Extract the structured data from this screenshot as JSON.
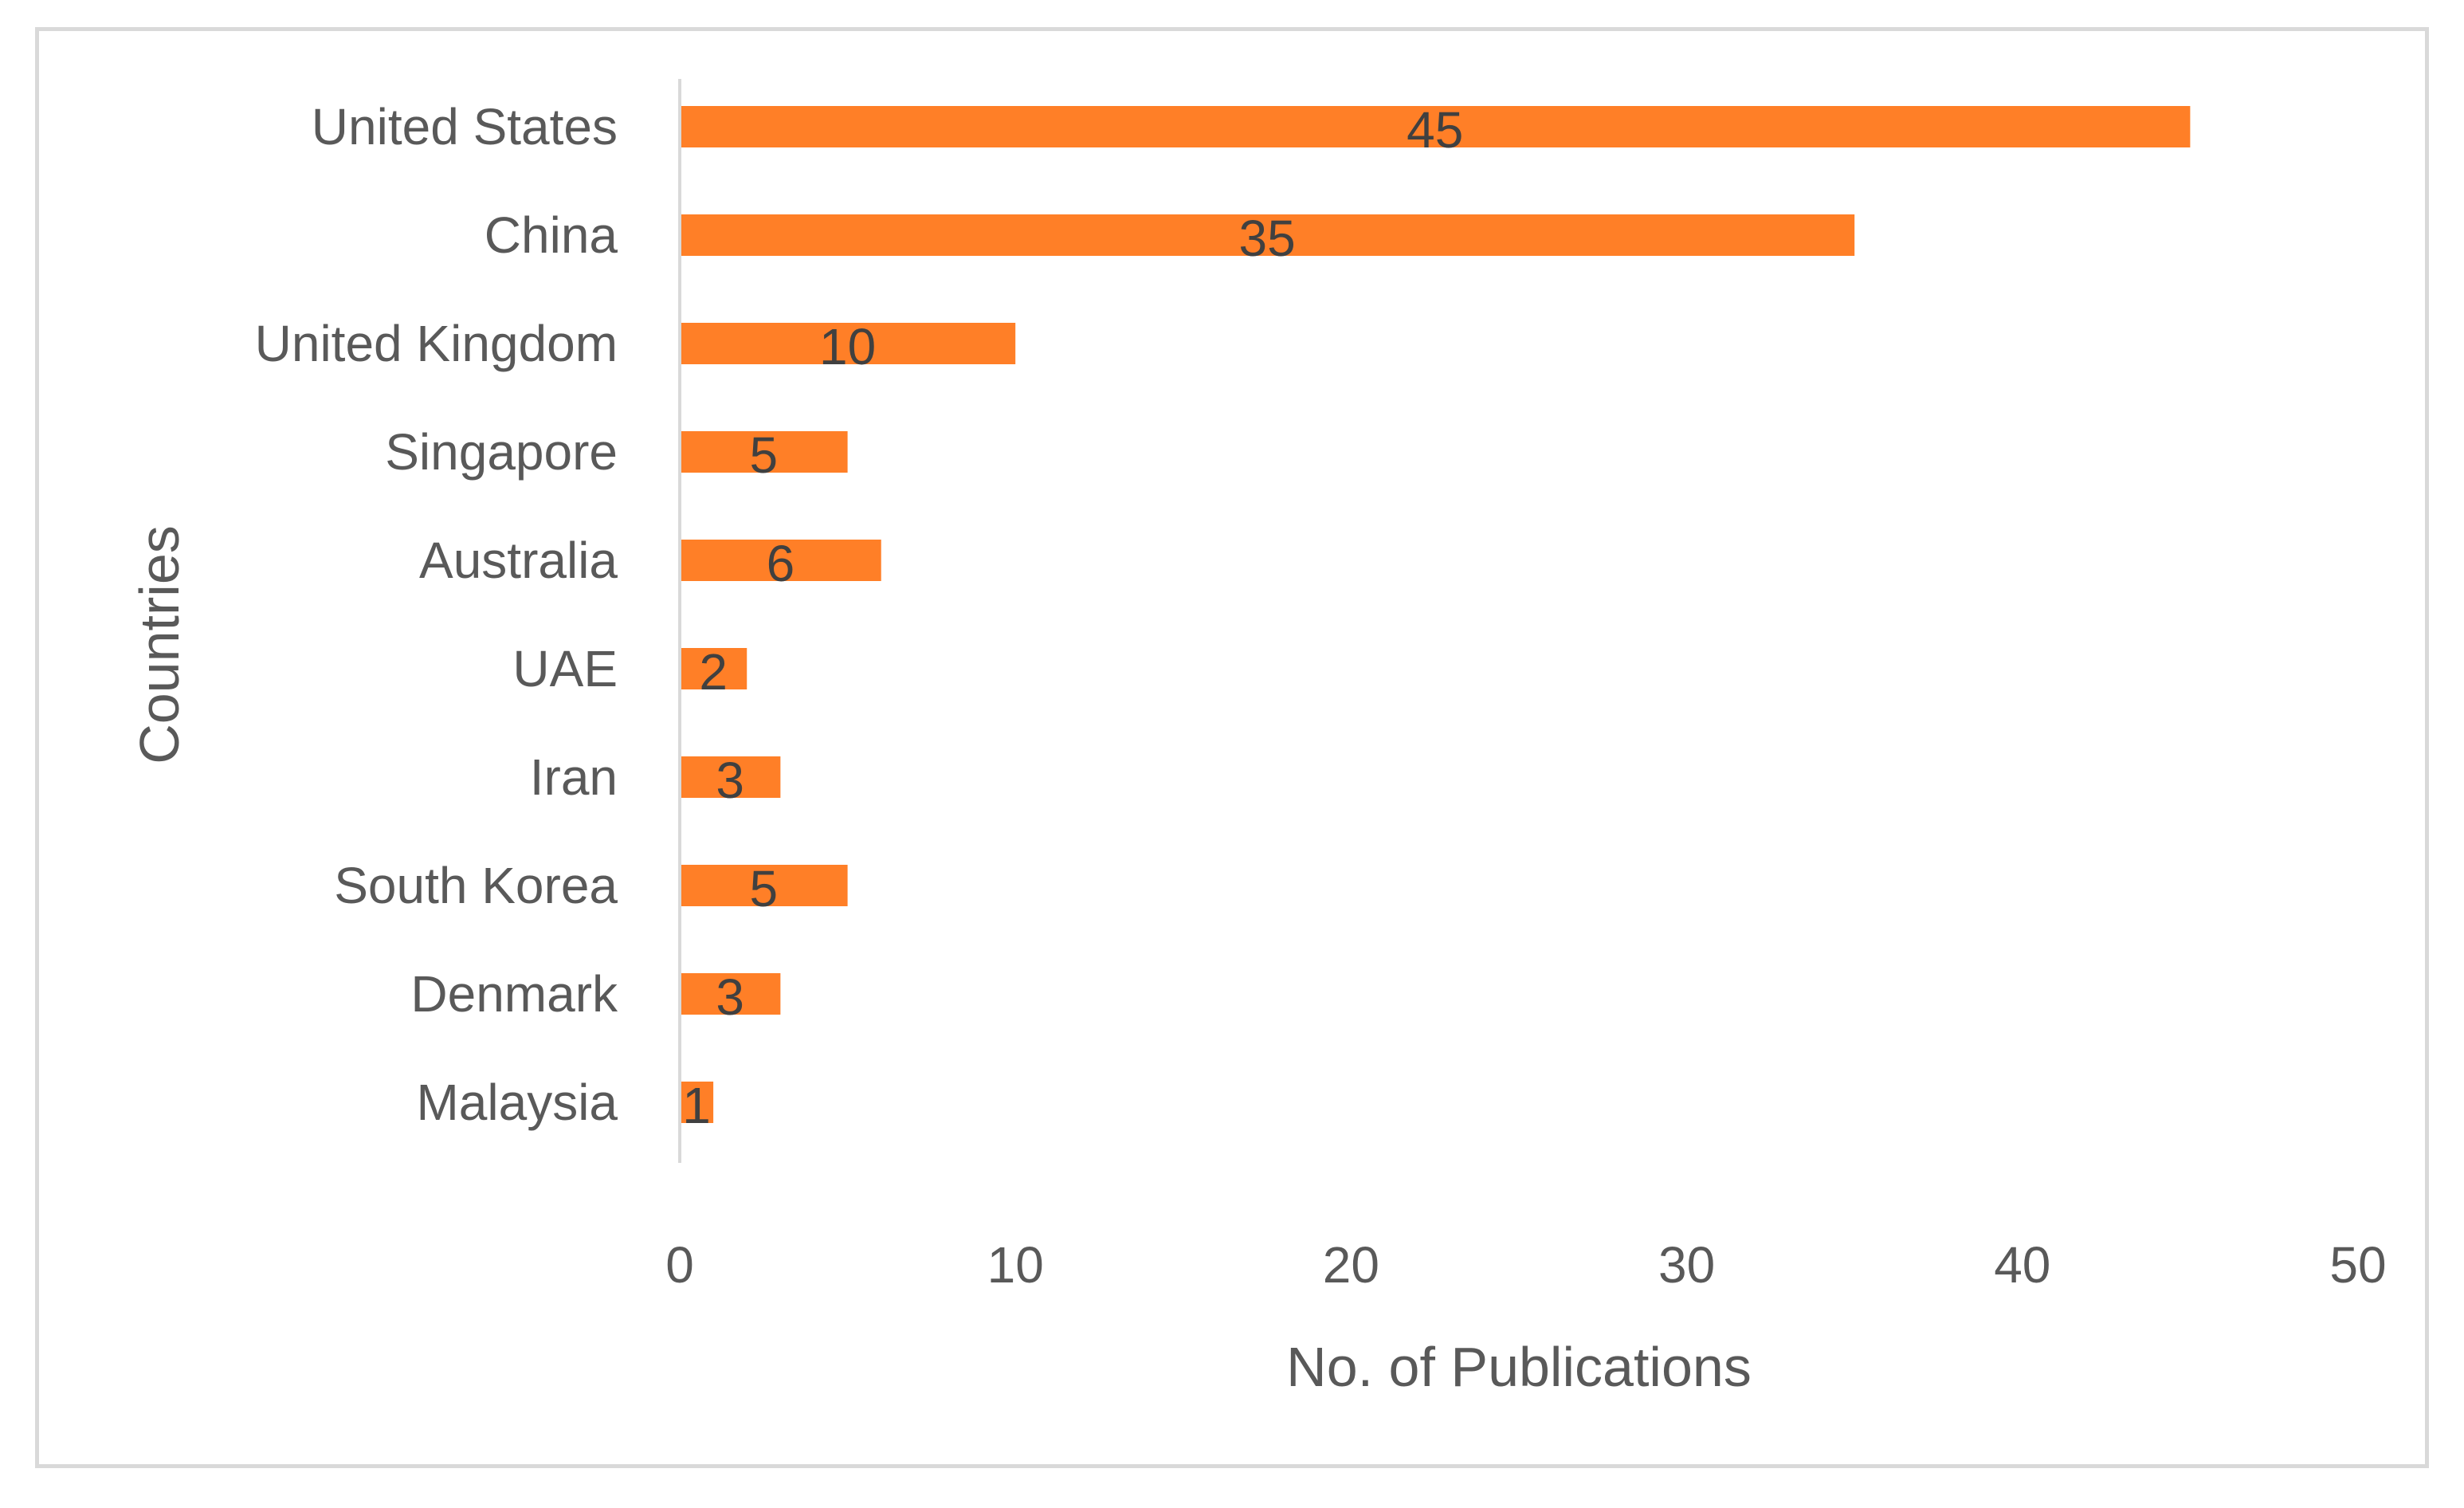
{
  "chart_data": {
    "type": "bar",
    "orientation": "horizontal",
    "categories": [
      "United States",
      "China",
      "United Kingdom",
      "Singapore",
      "Australia",
      "UAE",
      "Iran",
      "South Korea",
      "Denmark",
      "Malaysia"
    ],
    "values": [
      45,
      35,
      10,
      5,
      6,
      2,
      3,
      5,
      3,
      1
    ],
    "data_labels": [
      "45",
      "35",
      "10",
      "5",
      "6",
      "2",
      "3",
      "5",
      "3",
      "1"
    ],
    "xlabel": "No. of Publications",
    "ylabel": "Countries",
    "xlim": [
      0,
      50
    ],
    "x_ticks": [
      0,
      10,
      20,
      30,
      40,
      50
    ],
    "grid": false,
    "legend": "none",
    "bar_color": "#FF7F27"
  }
}
